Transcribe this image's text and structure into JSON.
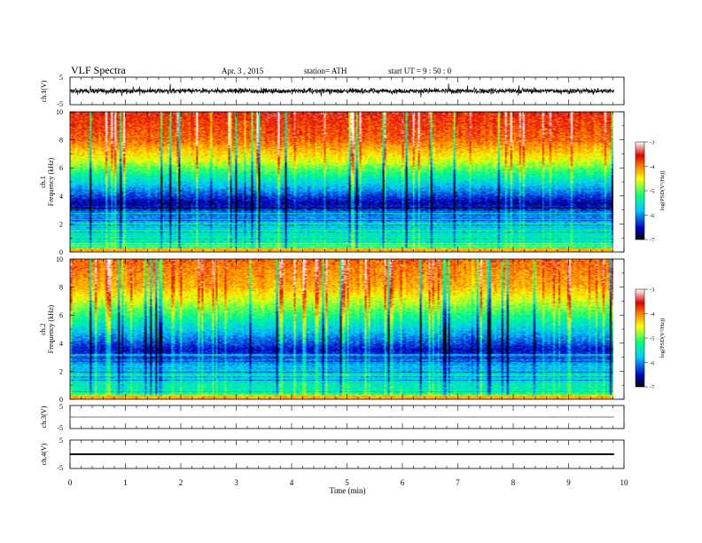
{
  "header": {
    "title": "VLF  Spectra",
    "date": "Apr. 3   , 2015",
    "station": "station= ATH",
    "start": "start  UT  =    9 : 50 : 0"
  },
  "colors": {
    "spectrum": [
      "#000000",
      "#0000c8",
      "#00c8ff",
      "#00ff80",
      "#ffff00",
      "#ff8000",
      "#e00000",
      "#ffffff"
    ],
    "trace": "#000000"
  },
  "chart_data": [
    {
      "type": "line",
      "name": "ch1-waveform",
      "ylabel": "ch.1(V)",
      "ylim": [
        -5,
        5
      ],
      "yticks": [
        "5",
        "-5"
      ],
      "xlim": [
        0,
        10
      ],
      "description_values": {
        "mean": 0,
        "amplitude_typical": 1.5,
        "amplitude_peak": 3.5
      }
    },
    {
      "type": "heatmap",
      "name": "ch1-spectrogram",
      "ylabel_channel": "ch.1",
      "ylabel": "Frequency  (kHz)",
      "ylim": [
        0,
        10
      ],
      "yticks": [
        "0",
        "2",
        "4",
        "6",
        "8",
        "10"
      ],
      "xlim": [
        0,
        9.82
      ],
      "colorbar": {
        "label": "log(PSD(V²/Hz))",
        "range": [
          -7,
          -3
        ],
        "ticks": [
          "-3",
          "-4",
          "-5",
          "-6",
          "-7"
        ]
      },
      "level_profile": [
        {
          "f": 0,
          "level": -4.5
        },
        {
          "f": 0.5,
          "level": -5.2
        },
        {
          "f": 1.5,
          "level": -5.6
        },
        {
          "f": 2.5,
          "level": -6.0
        },
        {
          "f": 3.5,
          "level": -6.6
        },
        {
          "f": 5,
          "level": -5.6
        },
        {
          "f": 6.5,
          "level": -4.6
        },
        {
          "f": 8,
          "level": -3.9
        },
        {
          "f": 10,
          "level": -3.6
        }
      ]
    },
    {
      "type": "heatmap",
      "name": "ch2-spectrogram",
      "ylabel_channel": "ch.2",
      "ylabel": "Frequency  (kHz)",
      "ylim": [
        0,
        10
      ],
      "yticks": [
        "0",
        "2",
        "4",
        "6",
        "8",
        "10"
      ],
      "xlim": [
        0,
        9.82
      ],
      "colorbar": {
        "label": "log(PSD(V²/Hz))",
        "range": [
          -7,
          -3
        ],
        "ticks": [
          "-3",
          "-4",
          "-5",
          "-6",
          "-7"
        ]
      },
      "level_profile": [
        {
          "f": 0,
          "level": -4.6
        },
        {
          "f": 0.5,
          "level": -5.3
        },
        {
          "f": 1.5,
          "level": -5.6
        },
        {
          "f": 2.5,
          "level": -5.9
        },
        {
          "f": 3.5,
          "level": -6.5
        },
        {
          "f": 5,
          "level": -5.7
        },
        {
          "f": 6.5,
          "level": -4.9
        },
        {
          "f": 8,
          "level": -4.2
        },
        {
          "f": 10,
          "level": -3.9
        }
      ]
    },
    {
      "type": "line",
      "name": "ch3-waveform",
      "ylabel": "ch.3(V)",
      "ylim": [
        -5,
        5
      ],
      "yticks": [
        "5",
        "-5"
      ],
      "xlim": [
        0,
        10
      ],
      "description_values": {
        "mean": 0,
        "amplitude_typical": 0.05
      }
    },
    {
      "type": "line",
      "name": "ch4-waveform",
      "ylabel": "ch.4(V)",
      "ylim": [
        -5,
        5
      ],
      "yticks": [
        "5",
        "-5"
      ],
      "xlim": [
        0,
        10
      ],
      "description_values": {
        "mean": 0,
        "amplitude_typical": 0.3
      }
    }
  ],
  "x_axis": {
    "label": "Time  (min)",
    "range": [
      0,
      10
    ],
    "ticks": [
      "0",
      "1",
      "2",
      "3",
      "4",
      "5",
      "6",
      "7",
      "8",
      "9",
      "10"
    ]
  }
}
